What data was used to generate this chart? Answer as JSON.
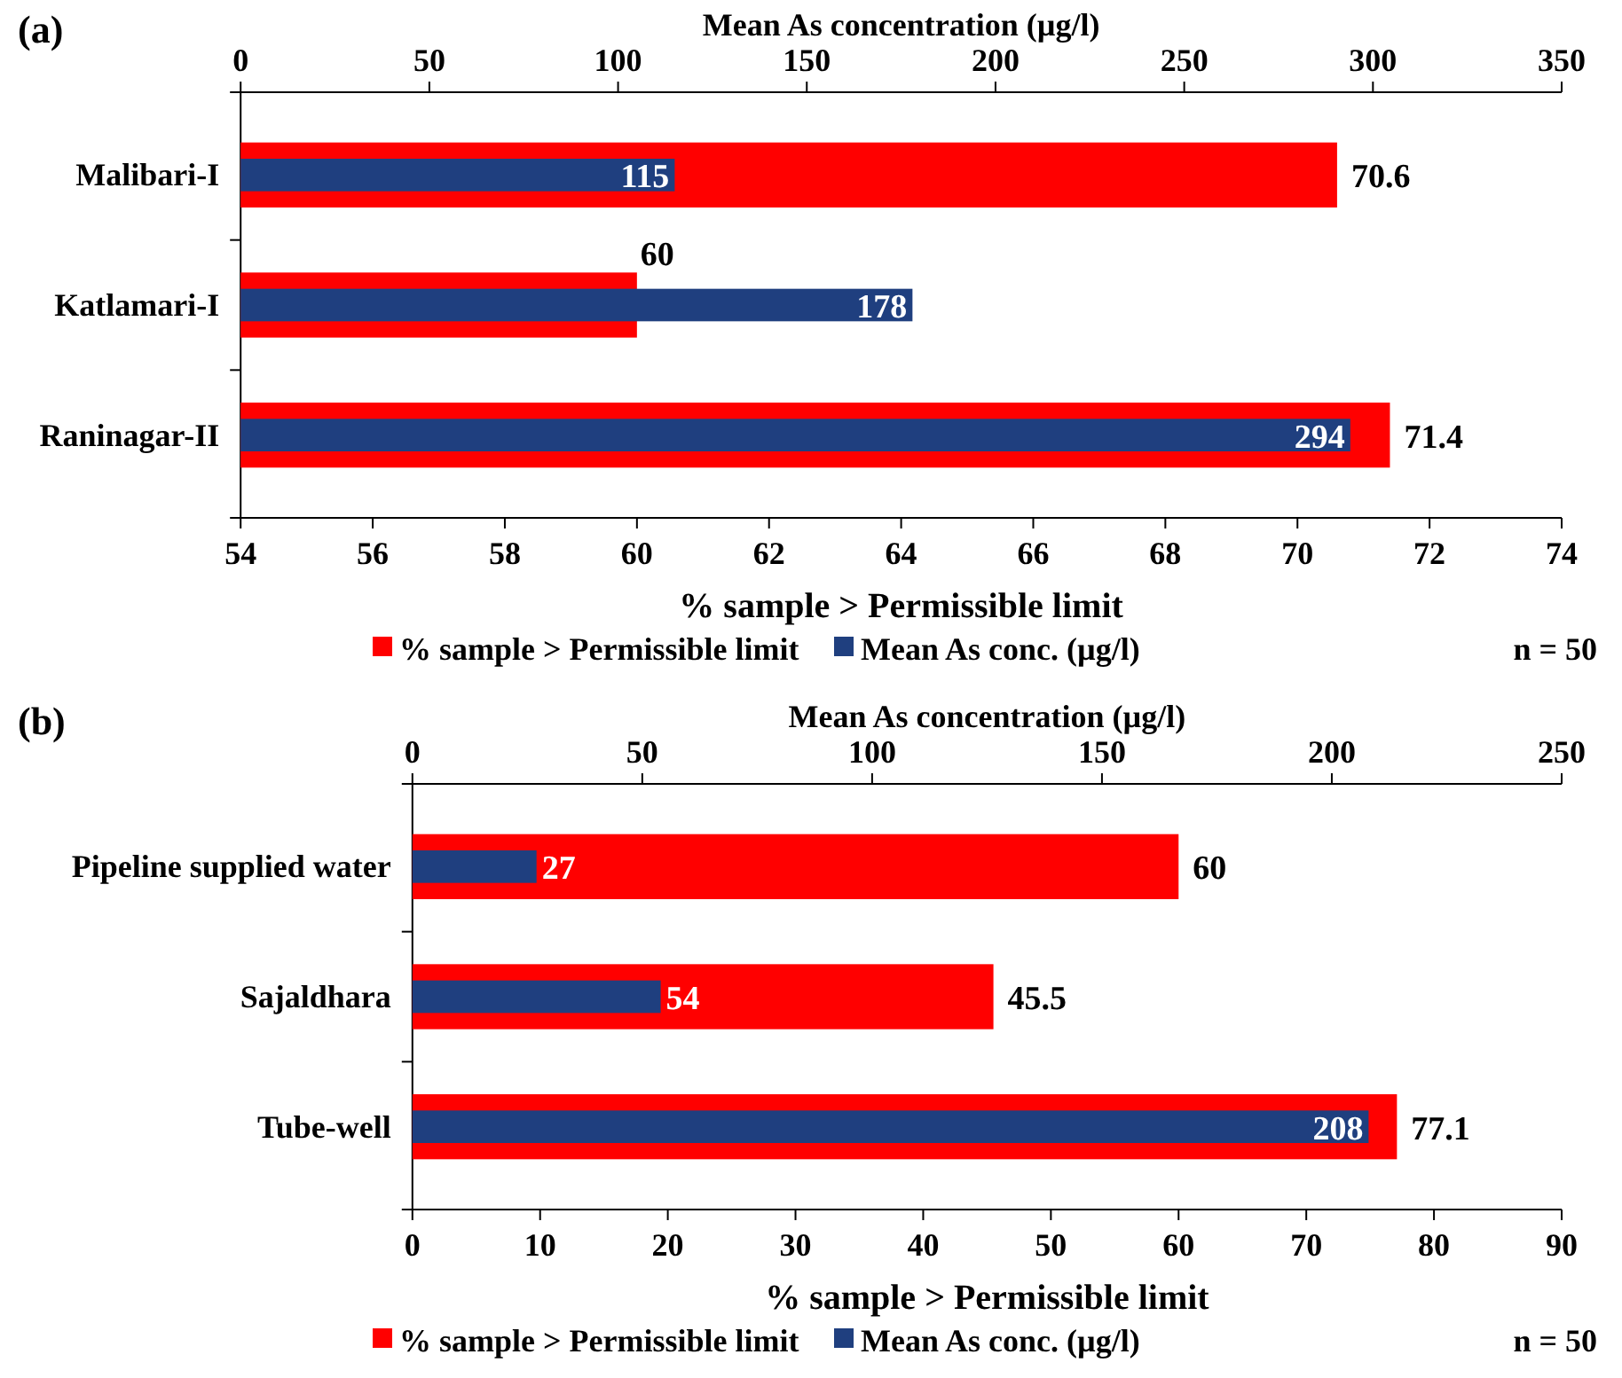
{
  "chart_data": [
    {
      "type": "bar",
      "orientation": "horizontal",
      "title": "(a)",
      "categories": [
        "Malibari-I",
        "Katlamari-I",
        "Raninagar-II"
      ],
      "series": [
        {
          "name": "% sample > Permissible limit",
          "color": "#ff0000",
          "values": [
            70.6,
            60,
            71.4
          ]
        },
        {
          "name": "Mean As conc. (µg/l)",
          "color": "#1f3f7f",
          "values": [
            115,
            178,
            294
          ],
          "axis": "x2"
        }
      ],
      "xlabel": "% sample > Permissible limit",
      "x2label": "Mean As concentration (µg/l)",
      "xlim": [
        54,
        74
      ],
      "xticks": [
        54,
        56,
        58,
        60,
        62,
        64,
        66,
        68,
        70,
        72,
        74
      ],
      "x2lim": [
        0,
        350
      ],
      "x2ticks": [
        0,
        50,
        100,
        150,
        200,
        250,
        300,
        350
      ],
      "data_labels": true,
      "legend": "bottom",
      "grid": false,
      "annotations": [
        "n = 50"
      ]
    },
    {
      "type": "bar",
      "orientation": "horizontal",
      "title": "(b)",
      "categories": [
        "Pipeline supplied water",
        "Sajaldhara",
        "Tube-well"
      ],
      "series": [
        {
          "name": "% sample > Permissible limit",
          "color": "#ff0000",
          "values": [
            60,
            45.5,
            77.1
          ]
        },
        {
          "name": "Mean As conc. (µg/l)",
          "color": "#1f3f7f",
          "values": [
            27,
            54,
            208
          ],
          "axis": "x2"
        }
      ],
      "xlabel": "% sample > Permissible limit",
      "x2label": "Mean As concentration (µg/l)",
      "xlim": [
        0,
        90
      ],
      "xticks": [
        0,
        10,
        20,
        30,
        40,
        50,
        60,
        70,
        80,
        90
      ],
      "x2lim": [
        0,
        250
      ],
      "x2ticks": [
        0,
        50,
        100,
        150,
        200,
        250
      ],
      "data_labels": true,
      "legend": "bottom",
      "grid": false,
      "annotations": [
        "n = 50"
      ]
    }
  ]
}
